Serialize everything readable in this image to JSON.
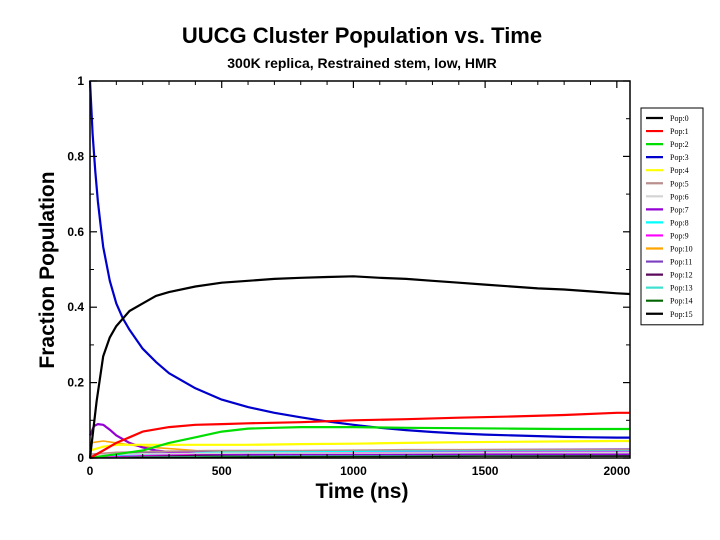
{
  "chart_data": {
    "type": "line",
    "title": "UUCG Cluster Population vs. Time",
    "subtitle": "300K replica, Restrained stem, low, HMR",
    "xlabel": "Time (ns)",
    "ylabel": "Fraction Population",
    "xlim": [
      0,
      2050
    ],
    "ylim": [
      0,
      1
    ],
    "xticks": [
      0,
      500,
      1000,
      1500,
      2000
    ],
    "xtick_labels": [
      "0",
      "500",
      "1000",
      "1500",
      "2000"
    ],
    "yticks": [
      0,
      0.2,
      0.4,
      0.6,
      0.8,
      1
    ],
    "ytick_labels": [
      "0",
      "0.2",
      "0.4",
      "0.6",
      "0.8",
      "1"
    ],
    "legend_position": "right",
    "series": [
      {
        "name": "Pop:0",
        "color": "#000000",
        "x": [
          0,
          25,
          50,
          75,
          100,
          150,
          200,
          250,
          300,
          400,
          500,
          600,
          700,
          800,
          900,
          1000,
          1100,
          1200,
          1300,
          1400,
          1500,
          1600,
          1700,
          1800,
          1900,
          2000,
          2050
        ],
        "y": [
          0,
          0.15,
          0.27,
          0.32,
          0.35,
          0.39,
          0.41,
          0.43,
          0.44,
          0.455,
          0.465,
          0.47,
          0.475,
          0.478,
          0.48,
          0.482,
          0.478,
          0.475,
          0.47,
          0.465,
          0.46,
          0.455,
          0.45,
          0.447,
          0.442,
          0.437,
          0.435
        ]
      },
      {
        "name": "Pop:1",
        "color": "#ff0000",
        "x": [
          0,
          50,
          100,
          150,
          200,
          300,
          400,
          500,
          600,
          800,
          1000,
          1200,
          1400,
          1600,
          1800,
          2000,
          2050
        ],
        "y": [
          0,
          0.02,
          0.04,
          0.055,
          0.07,
          0.082,
          0.088,
          0.09,
          0.092,
          0.095,
          0.1,
          0.103,
          0.107,
          0.11,
          0.114,
          0.12,
          0.12
        ]
      },
      {
        "name": "Pop:2",
        "color": "#00dd00",
        "x": [
          0,
          100,
          200,
          300,
          400,
          500,
          600,
          700,
          800,
          1000,
          1200,
          1400,
          1600,
          1800,
          2000,
          2050
        ],
        "y": [
          0,
          0.01,
          0.02,
          0.04,
          0.055,
          0.07,
          0.078,
          0.08,
          0.082,
          0.082,
          0.08,
          0.079,
          0.078,
          0.077,
          0.077,
          0.077
        ]
      },
      {
        "name": "Pop:3",
        "color": "#0000cc",
        "x": [
          0,
          10,
          20,
          30,
          40,
          50,
          75,
          100,
          125,
          150,
          200,
          250,
          300,
          400,
          500,
          600,
          700,
          800,
          900,
          1000,
          1100,
          1200,
          1300,
          1400,
          1500,
          1600,
          1700,
          1800,
          1900,
          2000,
          2050
        ],
        "y": [
          1,
          0.86,
          0.76,
          0.68,
          0.62,
          0.56,
          0.47,
          0.41,
          0.37,
          0.34,
          0.29,
          0.255,
          0.225,
          0.185,
          0.155,
          0.135,
          0.12,
          0.108,
          0.097,
          0.088,
          0.08,
          0.074,
          0.069,
          0.065,
          0.062,
          0.06,
          0.058,
          0.056,
          0.055,
          0.054,
          0.054
        ]
      },
      {
        "name": "Pop:4",
        "color": "#ffff00",
        "x": [
          0,
          50,
          100,
          200,
          400,
          600,
          800,
          1000,
          1200,
          1400,
          1600,
          1800,
          2000,
          2050
        ],
        "y": [
          0.02,
          0.03,
          0.035,
          0.035,
          0.035,
          0.035,
          0.037,
          0.038,
          0.04,
          0.042,
          0.043,
          0.044,
          0.045,
          0.045
        ]
      },
      {
        "name": "Pop:5",
        "color": "#bc8f8f",
        "x": [
          0,
          100,
          300,
          500,
          800,
          1200,
          1600,
          2000,
          2050
        ],
        "y": [
          0.01,
          0.015,
          0.018,
          0.02,
          0.02,
          0.022,
          0.022,
          0.022,
          0.022
        ]
      },
      {
        "name": "Pop:6",
        "color": "#d3d3d3",
        "x": [
          0,
          100,
          300,
          600,
          1000,
          1500,
          2050
        ],
        "y": [
          0.005,
          0.01,
          0.012,
          0.013,
          0.013,
          0.014,
          0.014
        ]
      },
      {
        "name": "Pop:7",
        "color": "#9400d3",
        "x": [
          0,
          15,
          30,
          50,
          75,
          100,
          150,
          200,
          250,
          300,
          400,
          600,
          1000,
          1500,
          2050
        ],
        "y": [
          0.06,
          0.085,
          0.09,
          0.088,
          0.075,
          0.06,
          0.04,
          0.028,
          0.02,
          0.016,
          0.012,
          0.01,
          0.01,
          0.01,
          0.01
        ]
      },
      {
        "name": "Pop:8",
        "color": "#00ffff",
        "x": [
          0,
          200,
          500,
          1000,
          1500,
          2050
        ],
        "y": [
          0.005,
          0.01,
          0.015,
          0.018,
          0.02,
          0.02
        ]
      },
      {
        "name": "Pop:9",
        "color": "#ff00ff",
        "x": [
          0,
          200,
          500,
          1000,
          1500,
          2050
        ],
        "y": [
          0.003,
          0.008,
          0.012,
          0.015,
          0.017,
          0.018
        ]
      },
      {
        "name": "Pop:10",
        "color": "#ffa500",
        "x": [
          0,
          50,
          100,
          200,
          400,
          1000,
          2050
        ],
        "y": [
          0.04,
          0.045,
          0.04,
          0.03,
          0.02,
          0.015,
          0.012
        ]
      },
      {
        "name": "Pop:11",
        "color": "#7b3fbf",
        "x": [
          0,
          200,
          500,
          1000,
          1500,
          2050
        ],
        "y": [
          0.005,
          0.015,
          0.018,
          0.02,
          0.022,
          0.024
        ]
      },
      {
        "name": "Pop:12",
        "color": "#5b0a5b",
        "x": [
          0,
          200,
          500,
          1000,
          1500,
          2050
        ],
        "y": [
          0.003,
          0.006,
          0.008,
          0.01,
          0.011,
          0.012
        ]
      },
      {
        "name": "Pop:13",
        "color": "#40e0d0",
        "x": [
          0,
          200,
          500,
          1000,
          1500,
          2050
        ],
        "y": [
          0.002,
          0.005,
          0.007,
          0.008,
          0.009,
          0.01
        ]
      },
      {
        "name": "Pop:14",
        "color": "#006400",
        "x": [
          0,
          200,
          500,
          1000,
          1500,
          2050
        ],
        "y": [
          0.002,
          0.004,
          0.005,
          0.006,
          0.007,
          0.008
        ]
      },
      {
        "name": "Pop:15",
        "color": "#000000",
        "x": [
          0,
          200,
          500,
          1000,
          1500,
          2050
        ],
        "y": [
          0.001,
          0.002,
          0.003,
          0.004,
          0.005,
          0.005
        ]
      }
    ]
  }
}
